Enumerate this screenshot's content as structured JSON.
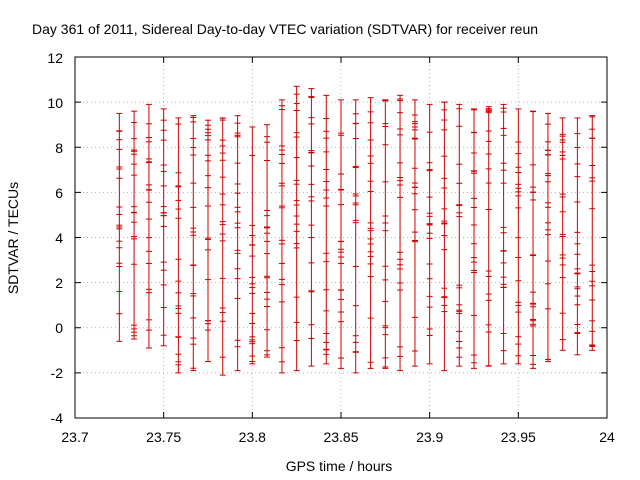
{
  "chart_data": {
    "type": "scatter",
    "title": "Day 361 of 2011, Sidereal Day-to-day VTEC variation (SDTVAR) for receiver reun",
    "xlabel": "GPS time / hours",
    "ylabel": "SDTVAR / TECUs",
    "xlim": [
      23.7,
      24.0
    ],
    "ylim": [
      -4,
      12
    ],
    "x_ticks": [
      "23.7",
      "23.75",
      "23.8",
      "23.85",
      "23.9",
      "23.95",
      "24"
    ],
    "y_ticks": [
      "-4",
      "-2",
      "0",
      "2",
      "4",
      "6",
      "8",
      "10",
      "12"
    ],
    "grid": true,
    "series_color": "#cc0000",
    "error_bar_samples": [
      {
        "x": 23.725,
        "y_min": -0.6,
        "y_max": 9.5
      },
      {
        "x": 23.7333,
        "y_min": -0.5,
        "y_max": 9.6
      },
      {
        "x": 23.7417,
        "y_min": -0.9,
        "y_max": 9.9
      },
      {
        "x": 23.75,
        "y_min": -0.8,
        "y_max": 9.7
      },
      {
        "x": 23.7583,
        "y_min": -2.0,
        "y_max": 9.3
      },
      {
        "x": 23.7667,
        "y_min": -1.9,
        "y_max": 9.4
      },
      {
        "x": 23.775,
        "y_min": -1.5,
        "y_max": 9.2
      },
      {
        "x": 23.7833,
        "y_min": -2.1,
        "y_max": 9.3
      },
      {
        "x": 23.7917,
        "y_min": -1.9,
        "y_max": 9.4
      },
      {
        "x": 23.8,
        "y_min": -1.6,
        "y_max": 8.9
      },
      {
        "x": 23.8083,
        "y_min": -1.3,
        "y_max": 9.0
      },
      {
        "x": 23.8167,
        "y_min": -2.0,
        "y_max": 10.1
      },
      {
        "x": 23.825,
        "y_min": -1.9,
        "y_max": 10.7
      },
      {
        "x": 23.8333,
        "y_min": -1.7,
        "y_max": 10.6
      },
      {
        "x": 23.8417,
        "y_min": -1.6,
        "y_max": 10.3
      },
      {
        "x": 23.85,
        "y_min": -1.8,
        "y_max": 10.1
      },
      {
        "x": 23.8583,
        "y_min": -2.0,
        "y_max": 10.1
      },
      {
        "x": 23.8667,
        "y_min": -1.8,
        "y_max": 10.2
      },
      {
        "x": 23.875,
        "y_min": -1.8,
        "y_max": 10.1
      },
      {
        "x": 23.8833,
        "y_min": -1.9,
        "y_max": 10.3
      },
      {
        "x": 23.8917,
        "y_min": -1.7,
        "y_max": 10.1
      },
      {
        "x": 23.9,
        "y_min": -1.6,
        "y_max": 9.9
      },
      {
        "x": 23.9083,
        "y_min": -1.9,
        "y_max": 10.0
      },
      {
        "x": 23.9167,
        "y_min": -1.7,
        "y_max": 9.9
      },
      {
        "x": 23.925,
        "y_min": -1.8,
        "y_max": 9.7
      },
      {
        "x": 23.9333,
        "y_min": -1.7,
        "y_max": 9.8
      },
      {
        "x": 23.9417,
        "y_min": -1.6,
        "y_max": 9.9
      },
      {
        "x": 23.95,
        "y_min": -1.6,
        "y_max": 9.7
      },
      {
        "x": 23.9583,
        "y_min": -1.8,
        "y_max": 9.6
      },
      {
        "x": 23.9667,
        "y_min": -1.5,
        "y_max": 9.5
      },
      {
        "x": 23.975,
        "y_min": -1.0,
        "y_max": 9.3
      },
      {
        "x": 23.9833,
        "y_min": -1.2,
        "y_max": 9.3
      },
      {
        "x": 23.9917,
        "y_min": -1.0,
        "y_max": 9.4
      }
    ]
  }
}
